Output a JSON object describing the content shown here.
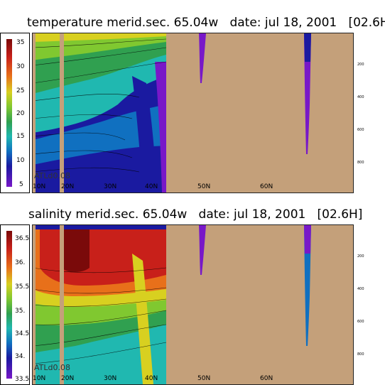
{
  "panels": [
    {
      "title": "temperature merid.sec. 65.04w   date: jul 18, 2001   [02.6H]",
      "colorbar_ticks": [
        "35",
        "30",
        "25",
        "20",
        "15",
        "10",
        "5"
      ],
      "lat_ticks": [
        "10N",
        "20N",
        "30N",
        "40N",
        "50N",
        "60N"
      ],
      "depth_ticks": [
        "200",
        "400",
        "600",
        "800"
      ],
      "model_label": "ATLd0.08"
    },
    {
      "title": "salinity merid.sec. 65.04w   date: jul 18, 2001   [02.6H]",
      "colorbar_ticks": [
        "36.5",
        "36.",
        "35.5",
        "35.",
        "34.5",
        "34.",
        "33.5"
      ],
      "lat_ticks": [
        "10N",
        "20N",
        "30N",
        "40N",
        "50N",
        "60N"
      ],
      "depth_ticks": [
        "200",
        "400",
        "600",
        "800"
      ],
      "model_label": "ATLd0.08"
    }
  ],
  "colors": {
    "land": "#c4a07a"
  },
  "chart_data": [
    {
      "type": "heatmap",
      "title": "temperature merid.sec. 65.04w   date: jul 18, 2001   [02.6H]",
      "variable": "temperature",
      "x_range": [
        10,
        75
      ],
      "y_range": [
        0,
        1000
      ],
      "colorbar_range": [
        5,
        36
      ],
      "colorbar_ticks": [
        35,
        30,
        25,
        20,
        15,
        10,
        5
      ],
      "x_ticks": [
        "10N",
        "20N",
        "30N",
        "40N",
        "50N",
        "60N"
      ],
      "y_ticks": [
        200,
        400,
        600,
        800
      ]
    },
    {
      "type": "heatmap",
      "title": "salinity merid.sec. 65.04w   date: jul 18, 2001   [02.6H]",
      "variable": "salinity",
      "x_range": [
        10,
        75
      ],
      "y_range": [
        0,
        1000
      ],
      "colorbar_range": [
        33.5,
        36.7
      ],
      "colorbar_ticks": [
        36.5,
        36.0,
        35.5,
        35.0,
        34.5,
        34.0,
        33.5
      ],
      "x_ticks": [
        "10N",
        "20N",
        "30N",
        "40N",
        "50N",
        "60N"
      ],
      "y_ticks": [
        200,
        400,
        600,
        800
      ]
    }
  ]
}
